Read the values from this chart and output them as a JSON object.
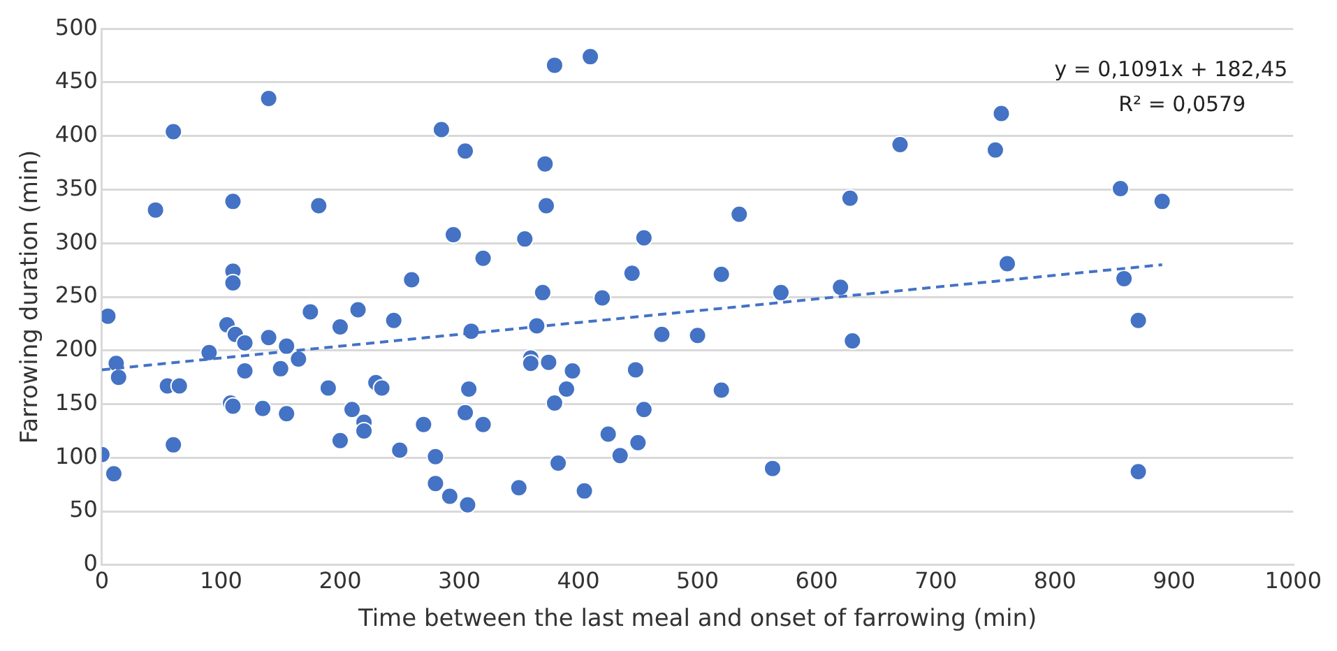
{
  "chart_data": {
    "type": "scatter",
    "xlabel": "Time between the last meal and onset of farrowing (min)",
    "ylabel": "Farrowing duration (min)",
    "annotations": [
      "y = 0,1091x + 182,45",
      "R² = 0,0579"
    ],
    "xlim": [
      0,
      1000
    ],
    "xticks": [
      0,
      100,
      200,
      300,
      400,
      500,
      600,
      700,
      800,
      900,
      1000
    ],
    "ylim": [
      0,
      500
    ],
    "yticks": [
      0,
      50,
      100,
      150,
      200,
      250,
      300,
      350,
      400,
      450,
      500
    ],
    "grid": "y",
    "legend": false,
    "marker": "circle",
    "series": [
      {
        "color": "#4472c4",
        "x": [
          0,
          5,
          10,
          12,
          14,
          45,
          55,
          60,
          60,
          65,
          90,
          105,
          108,
          110,
          110,
          110,
          110,
          112,
          120,
          120,
          135,
          140,
          140,
          150,
          155,
          155,
          165,
          175,
          182,
          190,
          200,
          200,
          210,
          215,
          220,
          220,
          230,
          235,
          245,
          250,
          260,
          270,
          280,
          280,
          285,
          292,
          295,
          305,
          305,
          307,
          308,
          310,
          320,
          320,
          350,
          355,
          360,
          360,
          365,
          370,
          372,
          373,
          375,
          380,
          380,
          383,
          390,
          395,
          405,
          410,
          420,
          425,
          435,
          445,
          448,
          450,
          455,
          455,
          470,
          500,
          520,
          520,
          535,
          563,
          570,
          620,
          628,
          630,
          670,
          750,
          755,
          760,
          855,
          858,
          870,
          870,
          890
        ],
        "values": [
          103,
          232,
          85,
          188,
          175,
          331,
          167,
          404,
          112,
          167,
          198,
          224,
          151,
          148,
          274,
          263,
          339,
          215,
          207,
          181,
          146,
          435,
          212,
          183,
          204,
          141,
          192,
          236,
          335,
          165,
          116,
          222,
          145,
          238,
          133,
          125,
          170,
          165,
          228,
          107,
          266,
          131,
          101,
          76,
          406,
          64,
          308,
          386,
          142,
          56,
          164,
          218,
          286,
          131,
          72,
          304,
          193,
          188,
          223,
          254,
          374,
          335,
          189,
          466,
          151,
          95,
          164,
          181,
          69,
          474,
          249,
          122,
          102,
          272,
          182,
          114,
          305,
          145,
          215,
          214,
          271,
          163,
          327,
          90,
          254,
          259,
          342,
          209,
          392,
          387,
          421,
          281,
          351,
          267,
          228,
          87,
          339
        ]
      },
      {
        "type": "line",
        "color": "#4472c4",
        "marker": "none",
        "line_style": "dashed",
        "x": [
          0,
          890
        ],
        "values": [
          182,
          280
        ]
      }
    ]
  }
}
